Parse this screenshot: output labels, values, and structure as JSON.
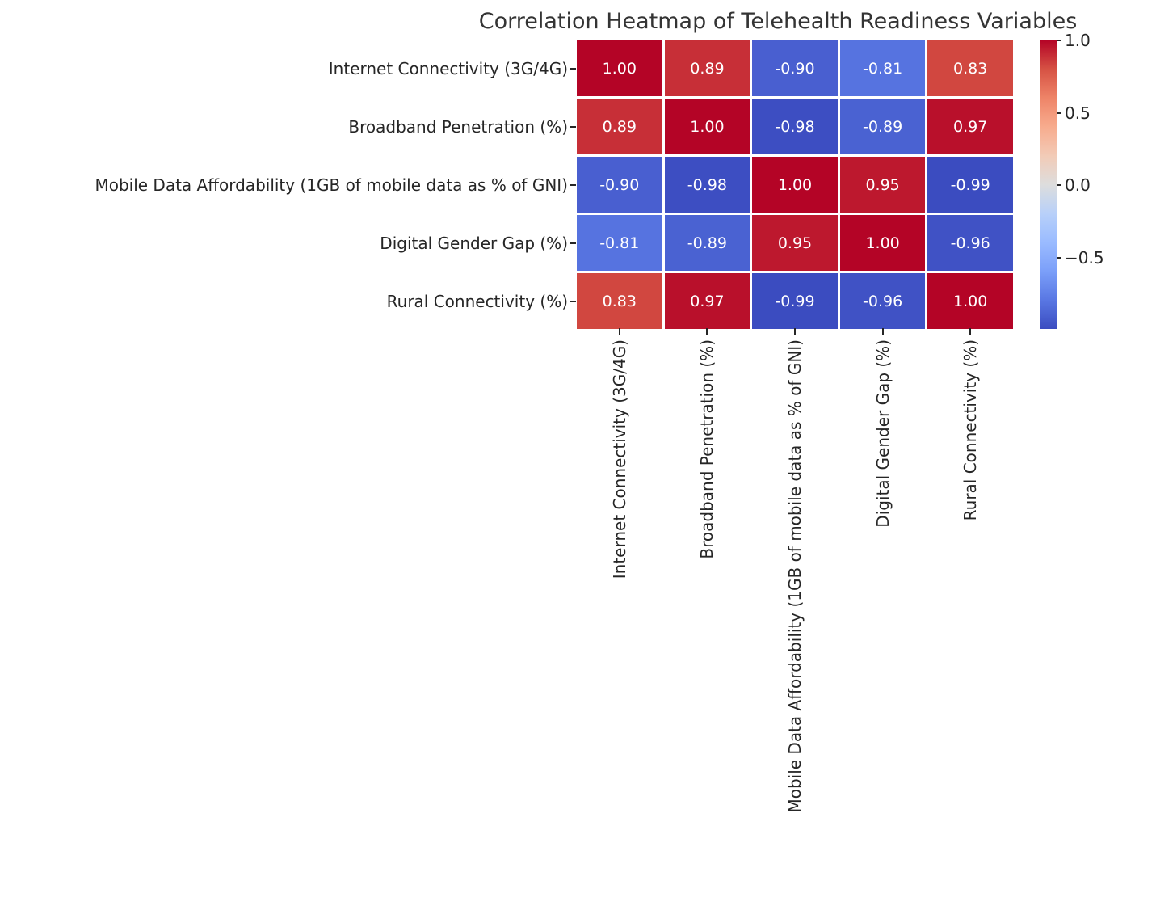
{
  "title": "Correlation Heatmap of Telehealth Readiness Variables",
  "chart_data": {
    "type": "heatmap",
    "categories": [
      "Internet Connectivity (3G/4G)",
      "Broadband Penetration (%)",
      "Mobile Data Affordability (1GB of mobile data as % of GNI)",
      "Digital Gender Gap (%)",
      "Rural Connectivity (%)"
    ],
    "matrix": [
      [
        1.0,
        0.89,
        -0.9,
        -0.81,
        0.83
      ],
      [
        0.89,
        1.0,
        -0.98,
        -0.89,
        0.97
      ],
      [
        -0.9,
        -0.98,
        1.0,
        0.95,
        -0.99
      ],
      [
        -0.81,
        -0.89,
        0.95,
        1.0,
        -0.96
      ],
      [
        0.83,
        0.97,
        -0.99,
        -0.96,
        1.0
      ]
    ],
    "colormap": "coolwarm",
    "vmin": -0.99,
    "vmax": 1.0,
    "value_decimals": 2,
    "annotation_text_color": "#ffffff",
    "grid_line_color": "#ffffff",
    "colors": {
      "max_red": "#b40426",
      "mid_neutral": "#dddddd",
      "min_blue": "#3b4cc0"
    },
    "colorbar": {
      "position": "right",
      "tick_values": [
        1.0,
        0.5,
        0.0,
        -0.5
      ],
      "tick_labels": [
        "1.0",
        "0.5",
        "0.0",
        "−0.5"
      ]
    },
    "legend_position": "right",
    "grid": false
  }
}
